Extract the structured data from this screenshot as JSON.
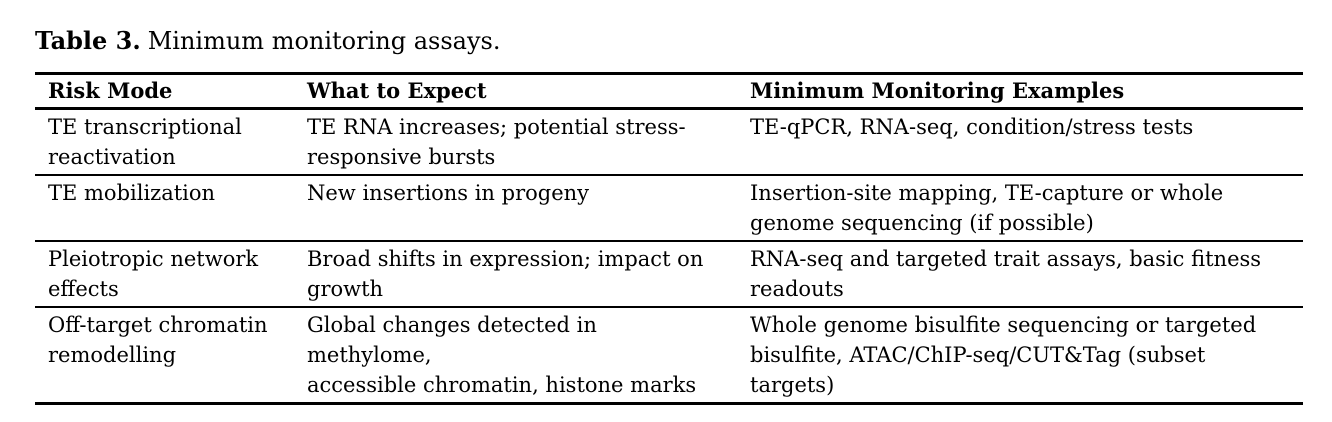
{
  "caption": {
    "label": "Table 3.",
    "text": "Minimum monitoring assays."
  },
  "table": {
    "headers": [
      "Risk Mode",
      "What to Expect",
      "Minimum Monitoring Examples"
    ],
    "rows": [
      {
        "risk_mode": "TE transcriptional\nreactivation",
        "what_to_expect": "TE RNA increases; potential stress-\nresponsive bursts",
        "examples": "TE-qPCR, RNA-seq, condition/stress tests"
      },
      {
        "risk_mode": "TE mobilization",
        "what_to_expect": "New insertions in progeny",
        "examples": "Insertion-site mapping, TE-capture or whole\ngenome sequencing (if possible)"
      },
      {
        "risk_mode": "Pleiotropic network\neffects",
        "what_to_expect": "Broad shifts in expression; impact on\ngrowth",
        "examples": "RNA-seq and targeted trait assays, basic fitness\nreadouts"
      },
      {
        "risk_mode": "Off-target chromatin\nremodelling",
        "what_to_expect": "Global changes detected in methylome,\naccessible chromatin, histone marks",
        "examples": "Whole genome bisulfite sequencing or targeted\nbisulfite, ATAC/ChIP-seq/CUT&Tag (subset\ntargets)"
      }
    ]
  },
  "colors": {
    "text": "#000000",
    "rule": "#000000",
    "background": "#ffffff"
  }
}
